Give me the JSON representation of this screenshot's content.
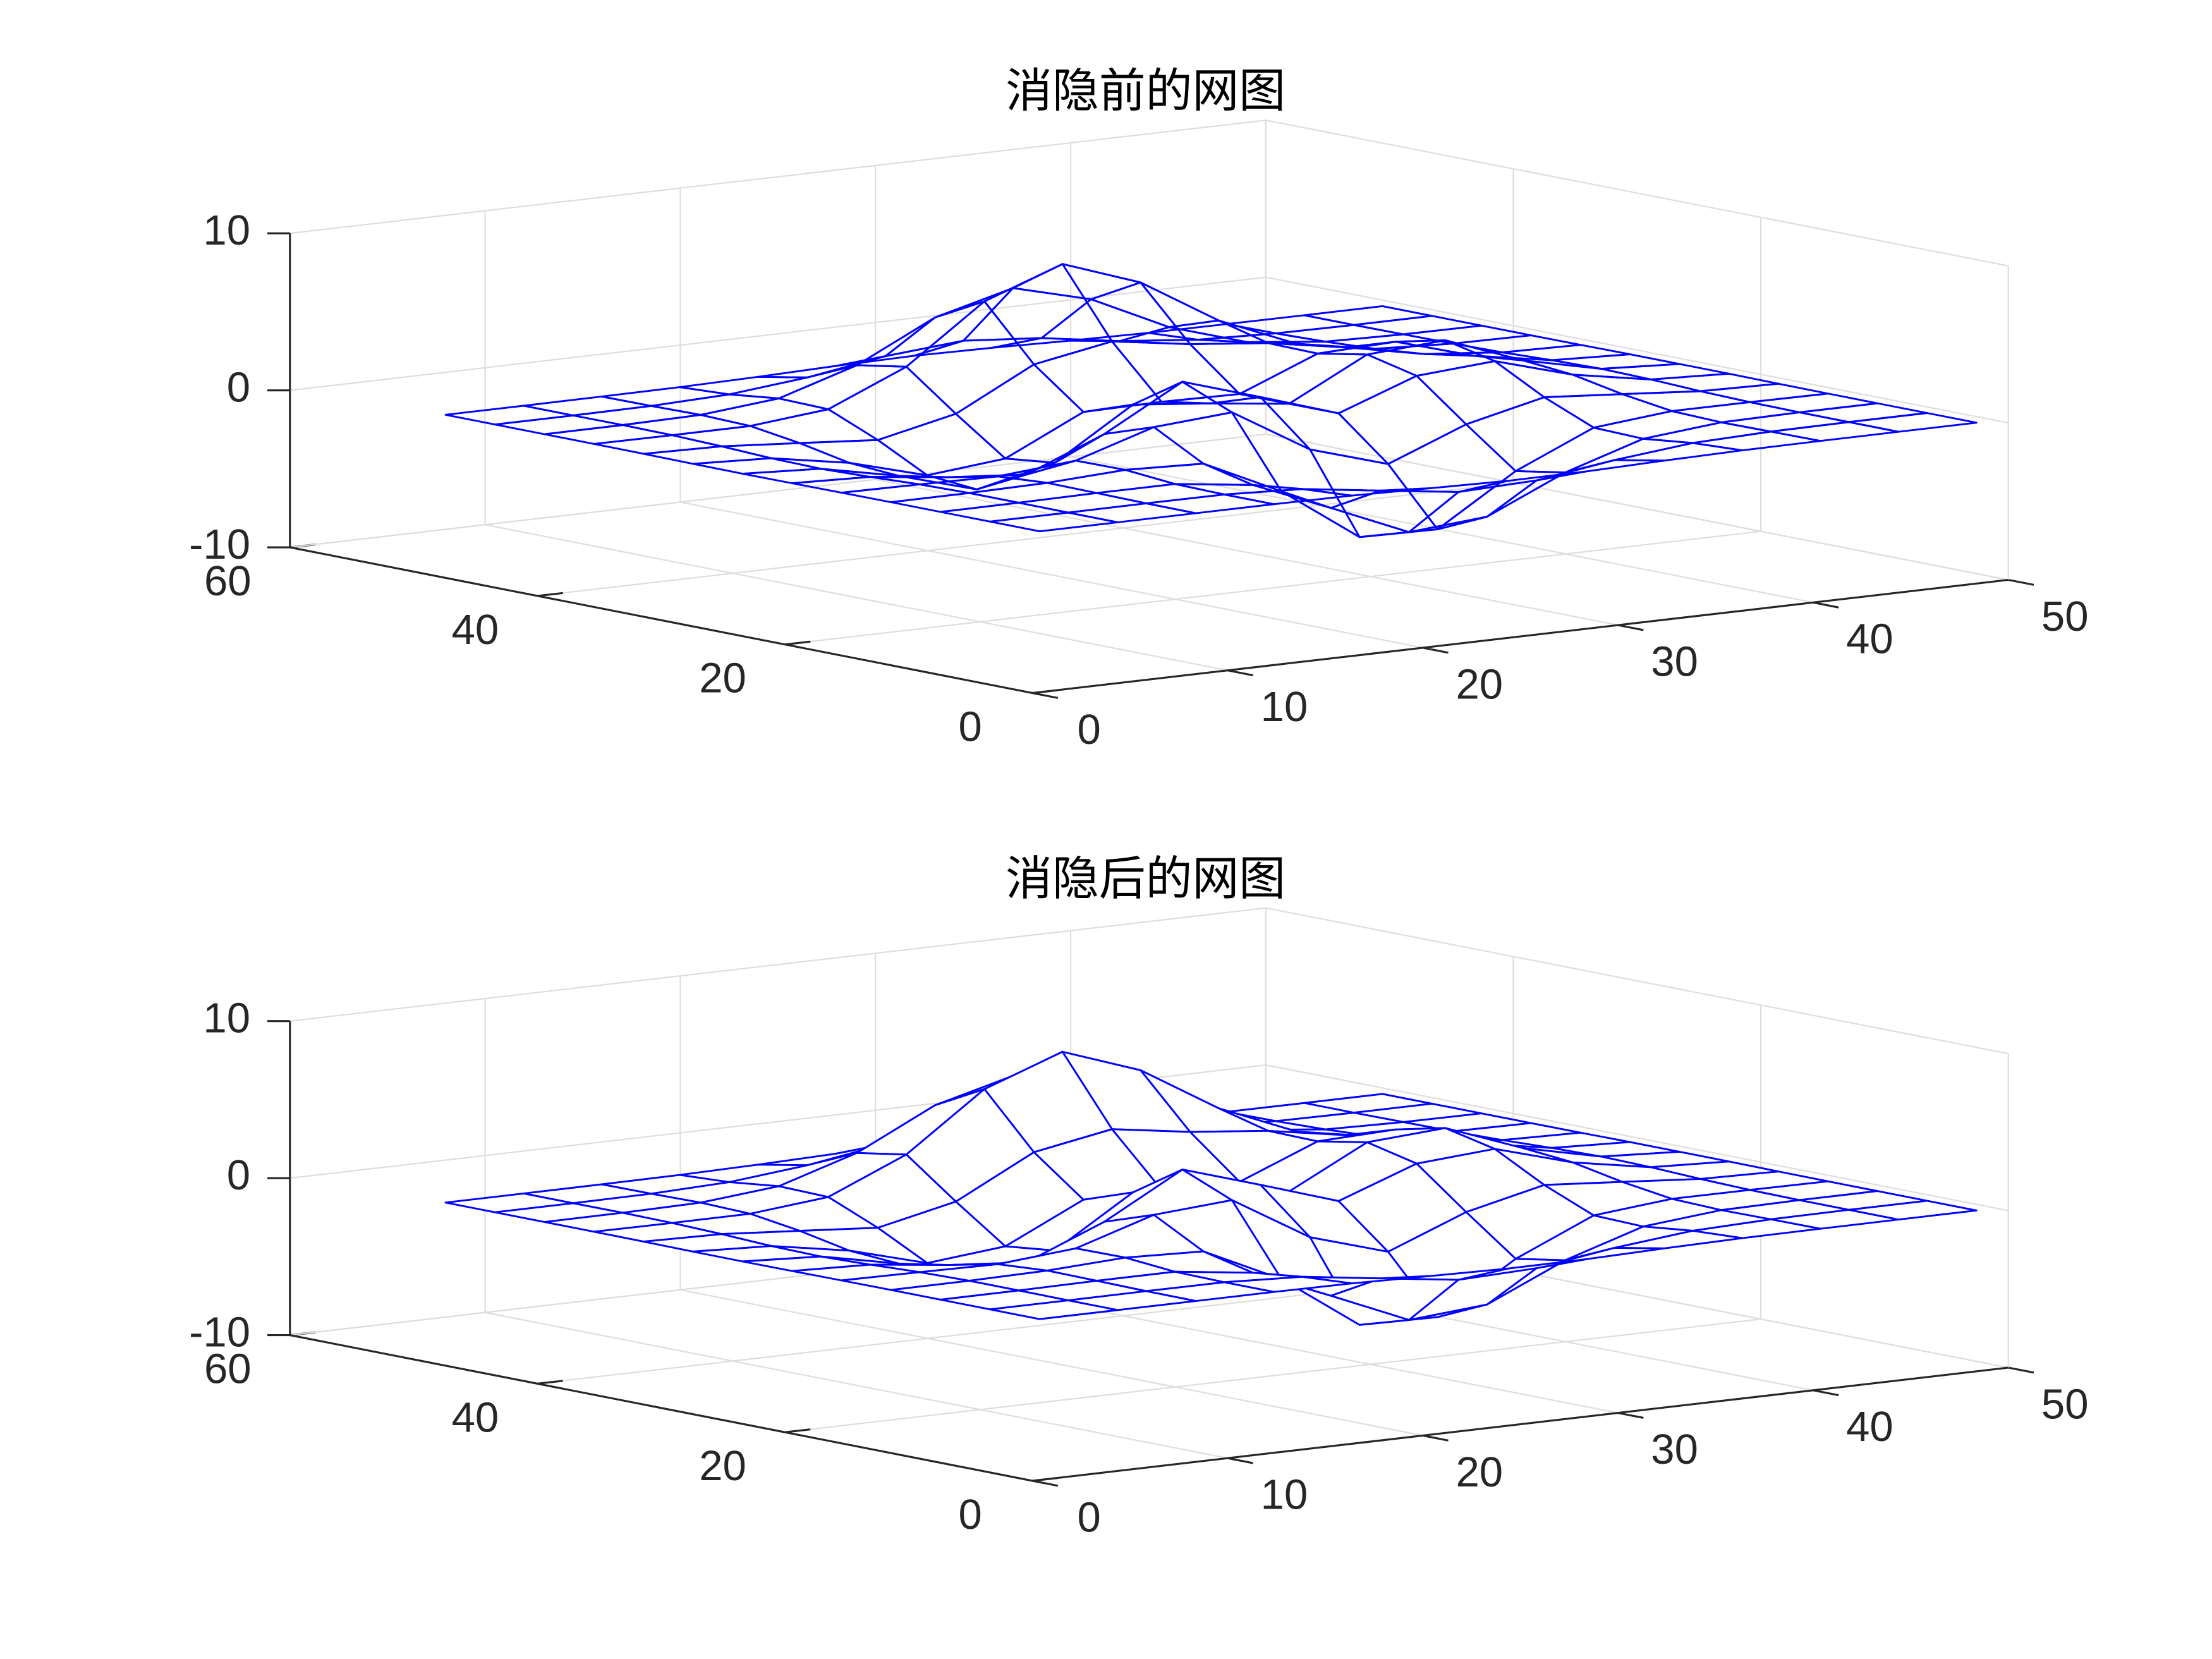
{
  "chart_data": [
    {
      "type": "mesh",
      "title": "消隐前的网图",
      "hidden": false,
      "color": "#0000ff",
      "grid": true,
      "x": [
        1,
        5,
        9,
        13,
        17,
        21,
        25,
        29,
        33,
        37,
        41,
        45,
        49
      ],
      "y": [
        1,
        5,
        9,
        13,
        17,
        21,
        25,
        29,
        33,
        37,
        41,
        45,
        49
      ],
      "z": [
        [
          0,
          0,
          0,
          0,
          -0.03,
          -0.14,
          -0.24,
          -0.22,
          -0.11,
          -0.03,
          -0.01,
          0,
          0
        ],
        [
          0,
          0,
          0.01,
          0,
          -0.23,
          -0.91,
          -1.57,
          -1.41,
          -0.69,
          -0.18,
          -0.03,
          0,
          0
        ],
        [
          0,
          0.01,
          0.05,
          0.05,
          -0.59,
          -2.63,
          -4.75,
          -4.34,
          -2.1,
          -0.53,
          -0.06,
          0,
          0
        ],
        [
          0,
          0.01,
          0.08,
          0.33,
          0.15,
          -2.19,
          -5.68,
          -5.76,
          -2.63,
          -0.44,
          0.04,
          0.03,
          0
        ],
        [
          -0.01,
          -0.06,
          -0.13,
          0.3,
          1.86,
          2.22,
          -0.72,
          -2.22,
          -0.27,
          0.88,
          0.5,
          0.11,
          0.01
        ],
        [
          -0.03,
          -0.2,
          -0.8,
          -1.21,
          0.8,
          3.55,
          2,
          0.39,
          2.2,
          2.56,
          1.12,
          0.24,
          0.03
        ],
        [
          -0.04,
          -0.3,
          -1.33,
          -2.77,
          -1.65,
          1.48,
          0.98,
          0.38,
          2.94,
          3.27,
          1.41,
          0.3,
          0.03
        ],
        [
          -0.03,
          -0.25,
          -1.12,
          -2.49,
          -2,
          0.39,
          0.46,
          0.38,
          2.38,
          2.56,
          1.09,
          0.23,
          0.03
        ],
        [
          -0.01,
          -0.11,
          -0.48,
          -0.86,
          0.23,
          2.8,
          3.69,
          2.94,
          2.43,
          1.58,
          0.58,
          0.11,
          0.01
        ],
        [
          0,
          -0.02,
          -0.01,
          0.48,
          2.61,
          6.2,
          8,
          6.25,
          3.25,
          1.19,
          0.29,
          0.05,
          0
        ],
        [
          0,
          0.01,
          0.08,
          0.55,
          2.09,
          4.55,
          5.85,
          4.56,
          2.21,
          0.68,
          0.13,
          0.02,
          0
        ],
        [
          0,
          0,
          0.03,
          0.19,
          0.69,
          1.47,
          1.88,
          1.47,
          0.7,
          0.21,
          0.04,
          0,
          0
        ],
        [
          0,
          0,
          0.01,
          0.03,
          0.11,
          0.23,
          0.3,
          0.23,
          0.11,
          0.03,
          0.01,
          0,
          0
        ]
      ],
      "xlim": [
        0,
        50
      ],
      "ylim": [
        0,
        60
      ],
      "zlim": [
        -10,
        10
      ],
      "xticks": [
        0,
        10,
        20,
        30,
        40,
        50
      ],
      "yticks": [
        0,
        20,
        40,
        60
      ],
      "zticks": [
        -10,
        0,
        10
      ]
    },
    {
      "type": "mesh",
      "title": "消隐后的网图",
      "hidden": true,
      "color": "#0000ff",
      "grid": true,
      "x": [
        1,
        5,
        9,
        13,
        17,
        21,
        25,
        29,
        33,
        37,
        41,
        45,
        49
      ],
      "y": [
        1,
        5,
        9,
        13,
        17,
        21,
        25,
        29,
        33,
        37,
        41,
        45,
        49
      ],
      "z": [
        [
          0,
          0,
          0,
          0,
          -0.03,
          -0.14,
          -0.24,
          -0.22,
          -0.11,
          -0.03,
          -0.01,
          0,
          0
        ],
        [
          0,
          0,
          0.01,
          0,
          -0.23,
          -0.91,
          -1.57,
          -1.41,
          -0.69,
          -0.18,
          -0.03,
          0,
          0
        ],
        [
          0,
          0.01,
          0.05,
          0.05,
          -0.59,
          -2.63,
          -4.75,
          -4.34,
          -2.1,
          -0.53,
          -0.06,
          0,
          0
        ],
        [
          0,
          0.01,
          0.08,
          0.33,
          0.15,
          -2.19,
          -5.68,
          -5.76,
          -2.63,
          -0.44,
          0.04,
          0.03,
          0
        ],
        [
          -0.01,
          -0.06,
          -0.13,
          0.3,
          1.86,
          2.22,
          -0.72,
          -2.22,
          -0.27,
          0.88,
          0.5,
          0.11,
          0.01
        ],
        [
          -0.03,
          -0.2,
          -0.8,
          -1.21,
          0.8,
          3.55,
          2,
          0.39,
          2.2,
          2.56,
          1.12,
          0.24,
          0.03
        ],
        [
          -0.04,
          -0.3,
          -1.33,
          -2.77,
          -1.65,
          1.48,
          0.98,
          0.38,
          2.94,
          3.27,
          1.41,
          0.3,
          0.03
        ],
        [
          -0.03,
          -0.25,
          -1.12,
          -2.49,
          -2,
          0.39,
          0.46,
          0.38,
          2.38,
          2.56,
          1.09,
          0.23,
          0.03
        ],
        [
          -0.01,
          -0.11,
          -0.48,
          -0.86,
          0.23,
          2.8,
          3.69,
          2.94,
          2.43,
          1.58,
          0.58,
          0.11,
          0.01
        ],
        [
          0,
          -0.02,
          -0.01,
          0.48,
          2.61,
          6.2,
          8,
          6.25,
          3.25,
          1.19,
          0.29,
          0.05,
          0
        ],
        [
          0,
          0.01,
          0.08,
          0.55,
          2.09,
          4.55,
          5.85,
          4.56,
          2.21,
          0.68,
          0.13,
          0.02,
          0
        ],
        [
          0,
          0,
          0.03,
          0.19,
          0.69,
          1.47,
          1.88,
          1.47,
          0.7,
          0.21,
          0.04,
          0,
          0
        ],
        [
          0,
          0,
          0.01,
          0.03,
          0.11,
          0.23,
          0.3,
          0.23,
          0.11,
          0.03,
          0.01,
          0,
          0
        ]
      ],
      "xlim": [
        0,
        50
      ],
      "ylim": [
        0,
        60
      ],
      "zlim": [
        -10,
        10
      ],
      "xticks": [
        0,
        10,
        20,
        30,
        40,
        50
      ],
      "yticks": [
        0,
        20,
        40,
        60
      ],
      "zticks": [
        -10,
        0,
        10
      ]
    }
  ]
}
